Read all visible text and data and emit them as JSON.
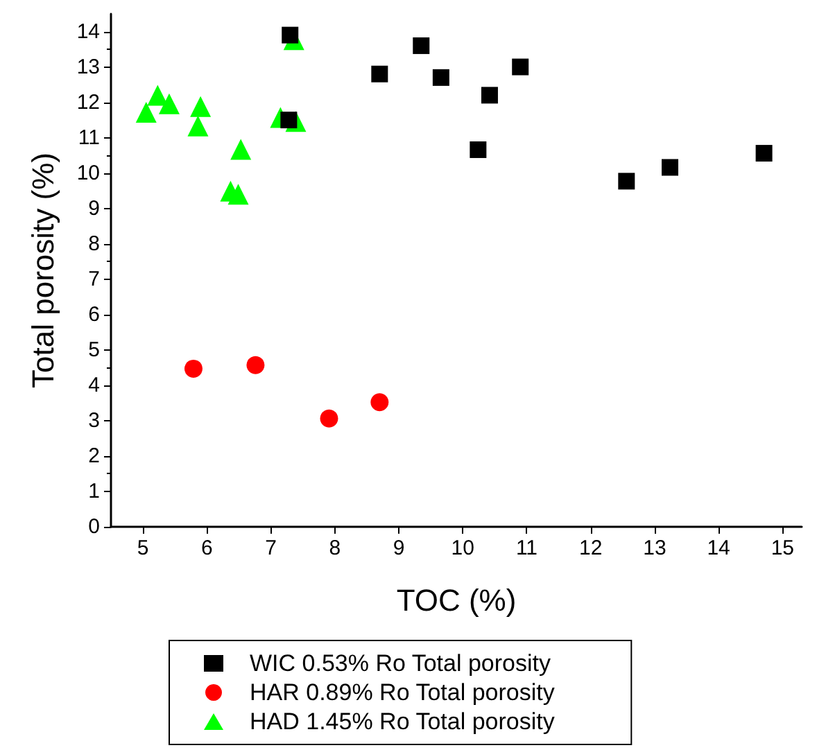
{
  "chart_data": {
    "type": "scatter",
    "xlabel": "TOC (%)",
    "ylabel": "Total porosity (%)",
    "xlim": [
      4.5,
      15.3
    ],
    "xticks": [
      5,
      6,
      7,
      8,
      9,
      10,
      11,
      12,
      13,
      14,
      15
    ],
    "ylim": [
      0,
      14.5
    ],
    "yticks": [
      0,
      1,
      2,
      3,
      4,
      5,
      6,
      7,
      8,
      9,
      10,
      11,
      12,
      13,
      14
    ],
    "grid": false,
    "legend": "bottom",
    "series": [
      {
        "name": "WIC 0.53% Ro Total porosity",
        "color": "#000000",
        "marker": "square",
        "x": [
          7.3,
          7.28,
          8.7,
          9.35,
          9.66,
          10.9,
          10.42,
          10.24,
          12.56,
          13.24,
          14.71
        ],
        "values": [
          13.9,
          11.5,
          12.8,
          13.6,
          12.7,
          13.0,
          12.2,
          10.66,
          9.77,
          10.16,
          10.56
        ]
      },
      {
        "name": "HAR 0.89% Ro Total porosity",
        "color": "#ff0000",
        "marker": "circle",
        "x": [
          5.79,
          6.76,
          7.91,
          8.7
        ],
        "values": [
          4.47,
          4.57,
          3.06,
          3.52
        ]
      },
      {
        "name": "HAD 1.45% Ro Total porosity",
        "color": "#00ff00",
        "marker": "triangle",
        "x": [
          5.05,
          5.23,
          5.41,
          5.9,
          5.86,
          6.53,
          6.37,
          6.49,
          7.15,
          7.39,
          7.36
        ],
        "values": [
          11.72,
          12.2,
          11.96,
          11.88,
          11.33,
          10.67,
          9.49,
          9.4,
          11.57,
          11.46,
          13.77
        ]
      }
    ]
  }
}
